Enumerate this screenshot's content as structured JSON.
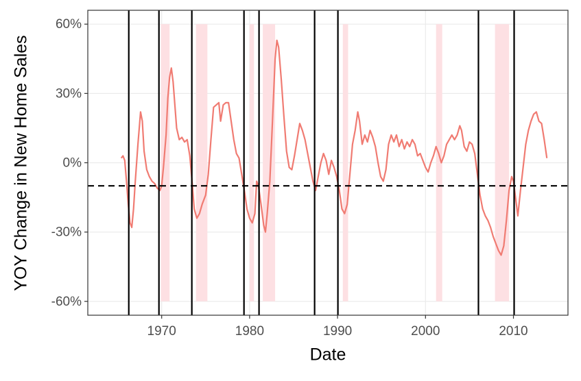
{
  "chart_data": {
    "type": "line",
    "x_label": "Date",
    "y_label": "YOY Change in New Home Sales",
    "color": "#f07b72",
    "recession_color": "#fde0e3",
    "reference_color": "#000000",
    "grid": true,
    "xlim": [
      1961.6,
      2016.2
    ],
    "xticks": [
      1970,
      1980,
      1990,
      2000,
      2010
    ],
    "ylim": [
      -66,
      66
    ],
    "yticks": [
      {
        "value": -60,
        "label": "-60%"
      },
      {
        "value": -30,
        "label": "-30%"
      },
      {
        "value": 0,
        "label": "0%"
      },
      {
        "value": 30,
        "label": "30%"
      },
      {
        "value": 60,
        "label": "60%"
      }
    ],
    "recessions": [
      [
        1969.9,
        1970.9
      ],
      [
        1973.9,
        1975.2
      ],
      [
        1980.0,
        1980.5
      ],
      [
        1981.5,
        1982.9
      ],
      [
        1990.6,
        1991.2
      ],
      [
        2001.2,
        2001.9
      ],
      [
        2007.9,
        2009.5
      ]
    ],
    "vlines": [
      1966.26,
      1969.69,
      1973.43,
      1979.36,
      1981.07,
      1987.39,
      1990.04,
      2006.02,
      2010.08
    ],
    "hline": -10,
    "x": [
      1965.4,
      1965.6,
      1965.8,
      1966.0,
      1966.2,
      1966.4,
      1966.6,
      1966.8,
      1967.0,
      1967.3,
      1967.6,
      1967.8,
      1968.0,
      1968.3,
      1968.6,
      1968.9,
      1969.2,
      1969.5,
      1969.8,
      1970.0,
      1970.2,
      1970.5,
      1970.7,
      1970.9,
      1971.1,
      1971.3,
      1971.5,
      1971.7,
      1972.0,
      1972.3,
      1972.6,
      1972.9,
      1973.2,
      1973.5,
      1973.7,
      1974.0,
      1974.3,
      1974.6,
      1975.0,
      1975.3,
      1975.6,
      1975.9,
      1976.2,
      1976.5,
      1976.7,
      1977.0,
      1977.3,
      1977.6,
      1977.9,
      1978.2,
      1978.5,
      1978.8,
      1979.1,
      1979.4,
      1979.7,
      1980.0,
      1980.3,
      1980.6,
      1980.8,
      1981.0,
      1981.3,
      1981.6,
      1981.8,
      1982.0,
      1982.3,
      1982.6,
      1982.9,
      1983.1,
      1983.3,
      1983.6,
      1983.9,
      1984.2,
      1984.5,
      1984.8,
      1985.1,
      1985.4,
      1985.7,
      1986.0,
      1986.3,
      1986.6,
      1986.9,
      1987.2,
      1987.5,
      1987.8,
      1988.1,
      1988.4,
      1988.7,
      1989.0,
      1989.3,
      1989.6,
      1989.9,
      1990.2,
      1990.5,
      1990.8,
      1991.1,
      1991.4,
      1991.7,
      1992.0,
      1992.3,
      1992.5,
      1992.8,
      1993.1,
      1993.4,
      1993.7,
      1994.0,
      1994.3,
      1994.6,
      1994.9,
      1995.2,
      1995.5,
      1995.8,
      1996.1,
      1996.4,
      1996.7,
      1997.0,
      1997.3,
      1997.6,
      1997.9,
      1998.2,
      1998.5,
      1998.8,
      1999.1,
      1999.4,
      1999.7,
      2000.0,
      2000.3,
      2000.6,
      2000.9,
      2001.2,
      2001.5,
      2001.8,
      2002.1,
      2002.4,
      2002.7,
      2003.0,
      2003.3,
      2003.6,
      2003.9,
      2004.1,
      2004.4,
      2004.7,
      2005.0,
      2005.3,
      2005.6,
      2005.9,
      2006.2,
      2006.5,
      2006.8,
      2007.1,
      2007.4,
      2007.7,
      2008.0,
      2008.3,
      2008.6,
      2008.9,
      2009.2,
      2009.5,
      2009.8,
      2010.0,
      2010.2,
      2010.5,
      2010.8,
      2011.1,
      2011.4,
      2011.7,
      2012.0,
      2012.3,
      2012.6,
      2012.9,
      2013.2,
      2013.5,
      2013.8
    ],
    "values": [
      2,
      3,
      1,
      -8,
      -18,
      -26,
      -28,
      -20,
      -8,
      8,
      22,
      18,
      5,
      -3,
      -6,
      -8,
      -9,
      -11,
      -12,
      -10,
      -2,
      12,
      28,
      37,
      41,
      35,
      25,
      15,
      10,
      11,
      9,
      10,
      3,
      -10,
      -20,
      -24,
      -22,
      -18,
      -14,
      -5,
      10,
      24,
      25,
      26,
      18,
      25,
      26,
      26,
      18,
      10,
      4,
      2,
      -5,
      -12,
      -20,
      -24,
      -26,
      -22,
      -8,
      -10,
      -18,
      -27,
      -30,
      -22,
      -8,
      18,
      45,
      53,
      50,
      36,
      20,
      5,
      -2,
      -3,
      3,
      10,
      17,
      14,
      10,
      4,
      -2,
      -8,
      -12,
      -6,
      0,
      4,
      1,
      -5,
      1,
      -2,
      -6,
      -12,
      -20,
      -22,
      -18,
      -5,
      8,
      14,
      22,
      18,
      8,
      12,
      9,
      14,
      11,
      7,
      0,
      -6,
      -8,
      -3,
      8,
      12,
      9,
      12,
      7,
      10,
      6,
      9,
      7,
      10,
      8,
      3,
      4,
      1,
      -2,
      -4,
      0,
      3,
      7,
      4,
      0,
      3,
      8,
      10,
      12,
      10,
      12,
      16,
      14,
      7,
      5,
      9,
      8,
      4,
      -5,
      -14,
      -20,
      -23,
      -25,
      -28,
      -32,
      -35,
      -38,
      -40,
      -36,
      -25,
      -12,
      -6,
      -8,
      -14,
      -23,
      -12,
      -2,
      8,
      14,
      18,
      21,
      22,
      18,
      17,
      10,
      2
    ]
  }
}
